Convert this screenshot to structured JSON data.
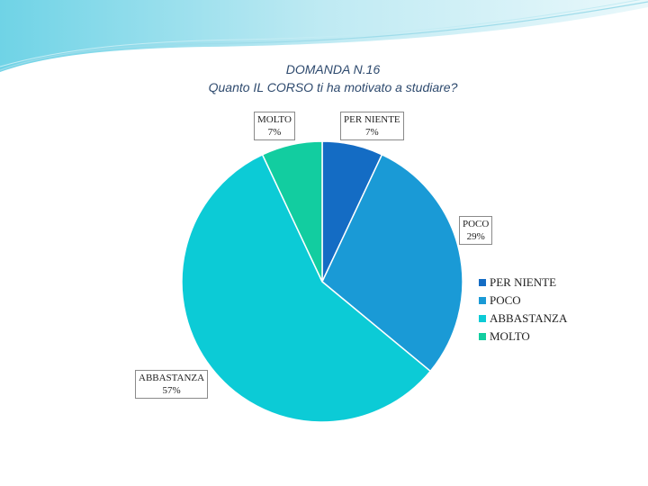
{
  "chart_data": {
    "type": "pie",
    "title_line1": "DOMANDA N.16",
    "title_line2": "Quanto IL CORSO ti ha motivato a studiare?",
    "categories": [
      "PER NIENTE",
      "POCO",
      "ABBASTANZA",
      "MOLTO"
    ],
    "values": [
      7,
      29,
      57,
      7
    ],
    "labels": [
      "7%",
      "29%",
      "57%",
      "7%"
    ],
    "colors": [
      "#146CC4",
      "#1A9AD6",
      "#0CCBD6",
      "#12CDA0"
    ],
    "legend_placement": "right"
  }
}
